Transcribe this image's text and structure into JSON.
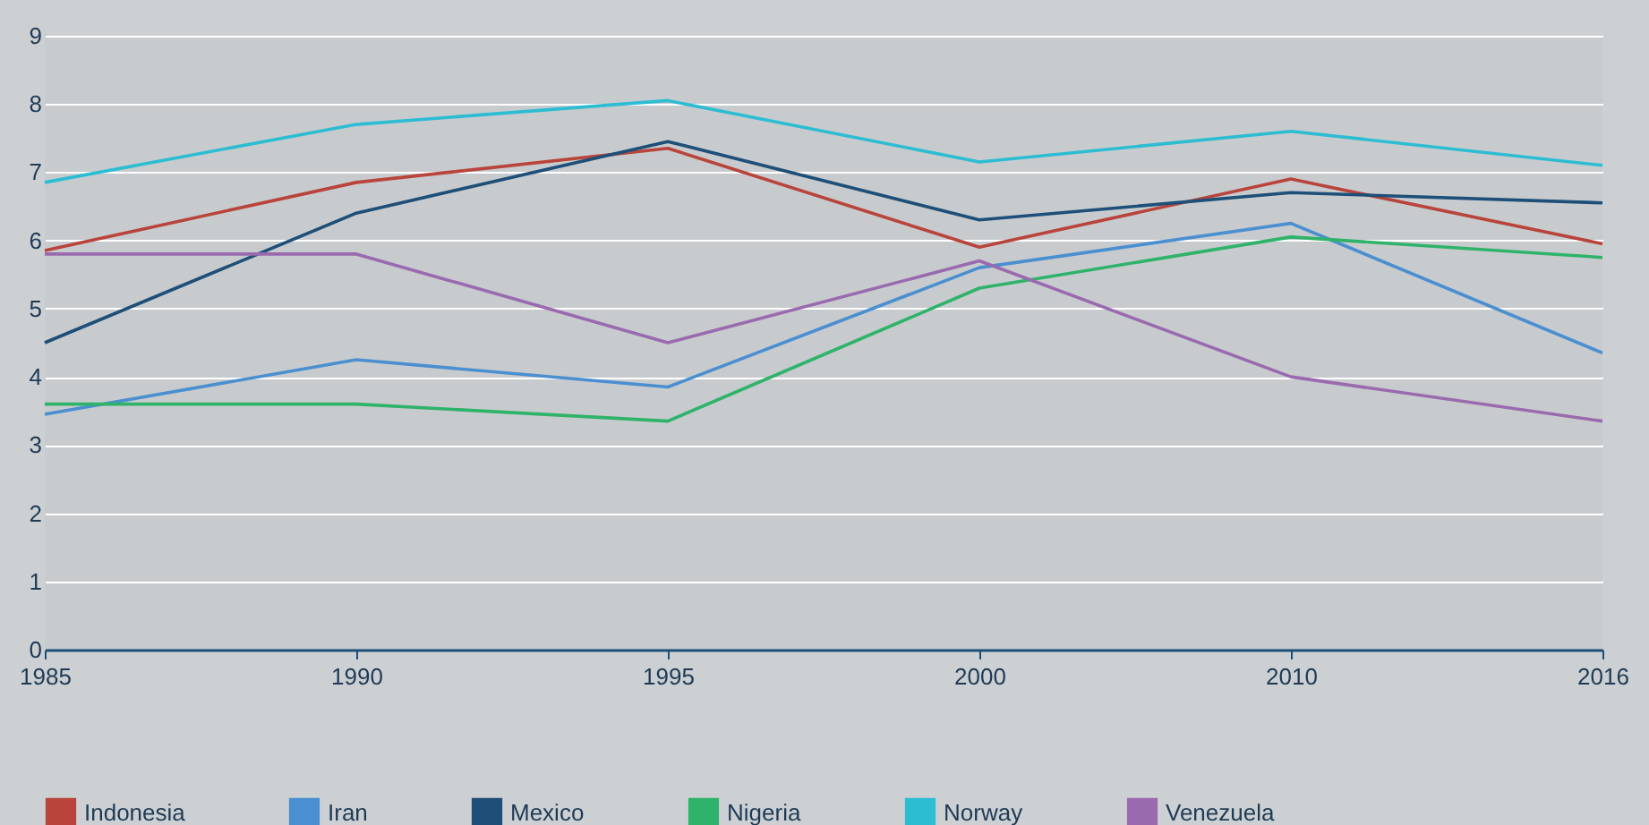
{
  "chart_data": {
    "type": "line",
    "categories": [
      "1985",
      "1990",
      "1995",
      "2000",
      "2010",
      "2016"
    ],
    "series": [
      {
        "name": "Indonesia",
        "color": "#b9443b",
        "values": [
          5.85,
          6.85,
          7.35,
          5.9,
          6.9,
          5.95
        ]
      },
      {
        "name": "Iran",
        "color": "#4a8fd0",
        "values": [
          3.45,
          4.25,
          3.85,
          5.6,
          6.25,
          4.35
        ]
      },
      {
        "name": "Mexico",
        "color": "#1d4f78",
        "values": [
          4.5,
          6.4,
          7.45,
          6.3,
          6.7,
          6.55
        ]
      },
      {
        "name": "Nigeria",
        "color": "#2fb36a",
        "values": [
          3.6,
          3.6,
          3.35,
          5.3,
          6.05,
          5.75
        ]
      },
      {
        "name": "Norway",
        "color": "#2cbdd3",
        "values": [
          6.85,
          7.7,
          8.05,
          7.15,
          7.6,
          7.1
        ]
      },
      {
        "name": "Venezuela",
        "color": "#9a6aaf",
        "values": [
          5.8,
          5.8,
          4.5,
          5.7,
          4.0,
          3.35
        ]
      }
    ],
    "ylim": [
      0,
      9
    ],
    "yticks": [
      0,
      1,
      2,
      3,
      4,
      5,
      6,
      7,
      8,
      9
    ],
    "grid": "y",
    "legend": "bottom",
    "marker": "none",
    "line_style": "solid"
  }
}
